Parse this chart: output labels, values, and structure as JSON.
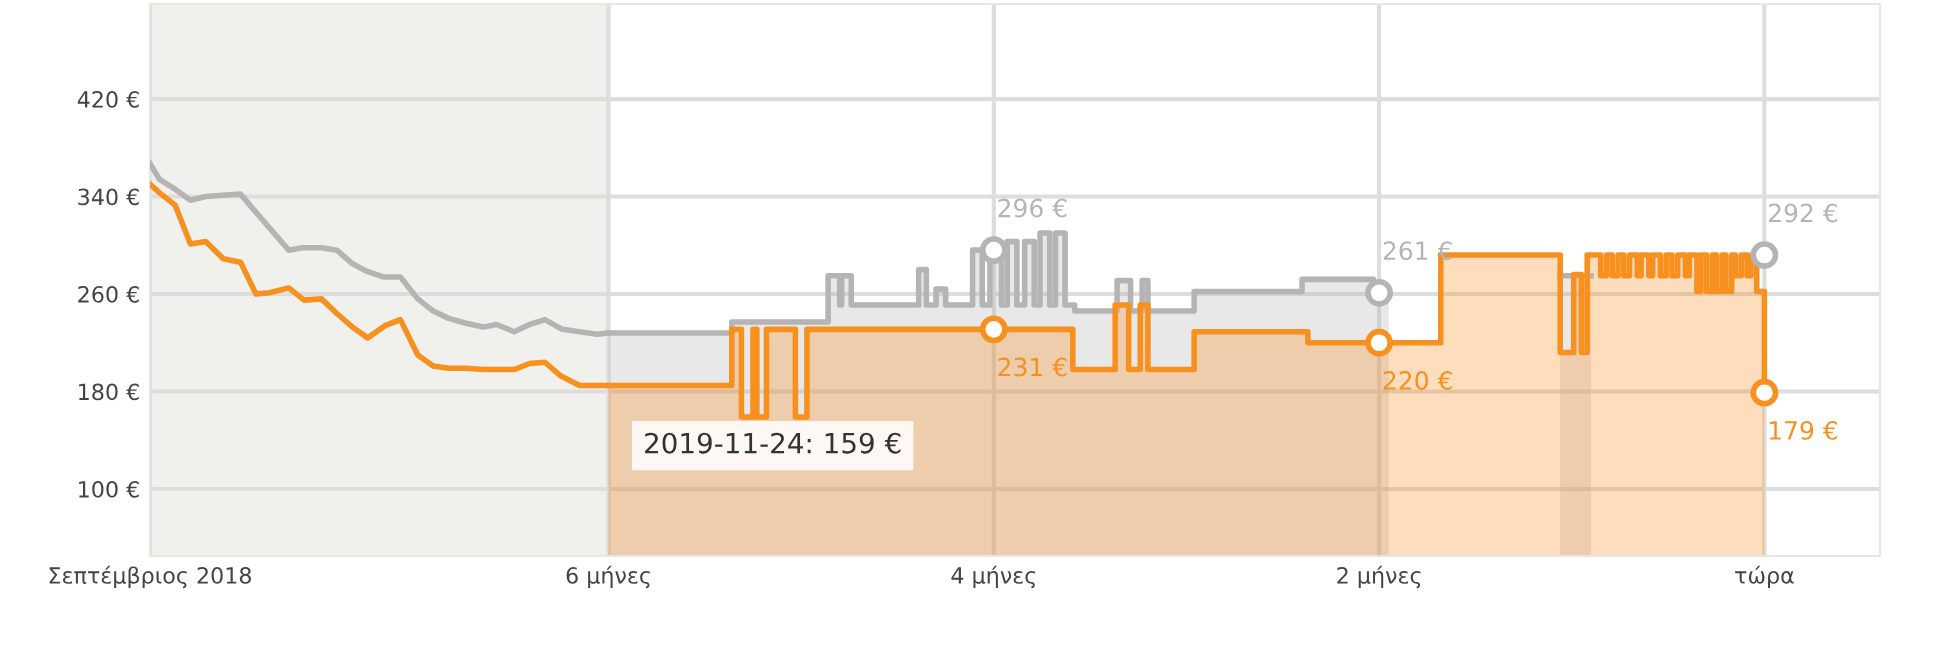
{
  "chart_data": {
    "type": "line",
    "xlim": [
      -8.38,
      0.6
    ],
    "ylim": [
      45,
      498
    ],
    "xticks": [
      {
        "value": -8.38,
        "label": "Σεπτέμβριος 2018"
      },
      {
        "value": -6,
        "label": "6 μήνες"
      },
      {
        "value": -4,
        "label": "4 μήνες"
      },
      {
        "value": -2,
        "label": "2 μήνες"
      },
      {
        "value": 0,
        "label": "τώρα"
      }
    ],
    "yticks": [
      {
        "value": 100,
        "label": "100 €"
      },
      {
        "value": 180,
        "label": "180 €"
      },
      {
        "value": 260,
        "label": "260 €"
      },
      {
        "value": 340,
        "label": "340 €"
      },
      {
        "value": 420,
        "label": "420 €"
      }
    ],
    "grid": true,
    "bands": [
      {
        "axis": "x",
        "from": -8.38,
        "to": -6,
        "color": "#f0f0ec"
      }
    ],
    "series": [
      {
        "color": "#b4b4b4",
        "x": [
          -8.38,
          -8.33,
          -8.25,
          -8.17,
          -8.09,
          -8.0,
          -7.91,
          -7.83,
          -7.66,
          -7.59,
          -7.49,
          -7.41,
          -7.33,
          -7.26,
          -7.17,
          -7.08,
          -6.99,
          -6.91,
          -6.83,
          -6.74,
          -6.65,
          -6.58,
          -6.49,
          -6.41,
          -6.33,
          -6.24,
          -6.15,
          -6.06,
          -6.0
        ],
        "values": [
          367,
          354,
          346,
          337,
          340,
          341,
          342,
          327,
          296,
          298,
          298,
          296,
          285,
          279,
          274,
          274,
          256,
          246,
          240,
          236,
          233,
          235,
          229,
          235,
          239,
          231,
          229,
          227,
          228
        ]
      },
      {
        "color": "#f7901e",
        "x": [
          -8.38,
          -8.33,
          -8.25,
          -8.17,
          -8.09,
          -8.0,
          -7.91,
          -7.83,
          -7.76,
          -7.66,
          -7.58,
          -7.49,
          -7.41,
          -7.33,
          -7.25,
          -7.16,
          -7.08,
          -6.99,
          -6.91,
          -6.83,
          -6.74,
          -6.65,
          -6.58,
          -6.49,
          -6.41,
          -6.33,
          -6.25,
          -6.15,
          -6.06,
          -6.0
        ],
        "values": [
          350,
          343,
          333,
          301,
          303,
          289,
          286,
          260,
          261,
          265,
          255,
          256,
          244,
          233,
          224,
          234,
          239,
          210,
          201,
          199,
          199,
          198,
          198,
          198,
          203,
          204,
          193,
          185,
          185,
          185
        ]
      },
      {
        "type": "area",
        "color": "#b4b4b4",
        "x": [
          -6.0,
          -5.36,
          -5.36,
          -4.86,
          -4.86,
          -4.8,
          -4.8,
          -4.79,
          -4.79,
          -4.74,
          -4.74,
          -4.39,
          -4.39,
          -4.35,
          -4.35,
          -4.3,
          -4.3,
          -4.25,
          -4.25,
          -4.11,
          -4.11,
          -4.06,
          -4.06,
          -4.02,
          -4.02,
          -3.96,
          -3.96,
          -3.93,
          -3.93,
          -3.88,
          -3.88,
          -3.84,
          -3.84,
          -3.79,
          -3.79,
          -3.76,
          -3.76,
          -3.71,
          -3.71,
          -3.68,
          -3.68,
          -3.63,
          -3.63,
          -3.58,
          -3.58,
          -3.36,
          -3.36,
          -3.29,
          -3.29,
          -3.23,
          -3.23,
          -3.2,
          -3.2,
          -2.96,
          -2.96,
          -2.4,
          -2.4,
          -2.03,
          -2.03,
          -1.95,
          -1.5,
          -1.06,
          -0.9
        ],
        "values": [
          228,
          228,
          237,
          237,
          275,
          275,
          251,
          251,
          275,
          275,
          251,
          251,
          280,
          280,
          251,
          251,
          264,
          264,
          251,
          251,
          296,
          296,
          251,
          251,
          296,
          296,
          251,
          251,
          303,
          303,
          251,
          251,
          303,
          303,
          251,
          251,
          310,
          310,
          251,
          251,
          310,
          310,
          251,
          251,
          246,
          246,
          271,
          271,
          246,
          246,
          271,
          271,
          246,
          246,
          262,
          262,
          272,
          272,
          261,
          261,
          null,
          275,
          275
        ]
      },
      {
        "type": "area",
        "color": "#f7901e",
        "x": [
          -6.0,
          -5.36,
          -5.36,
          -5.31,
          -5.31,
          -5.25,
          -5.25,
          -5.23,
          -5.23,
          -5.18,
          -5.18,
          -5.03,
          -5.03,
          -4.97,
          -4.97,
          -3.59,
          -3.59,
          -3.37,
          -3.37,
          -3.3,
          -3.3,
          -3.24,
          -3.24,
          -3.2,
          -3.2,
          -2.96,
          -2.96,
          -2.37,
          -2.37,
          -1.68,
          -1.68,
          -1.06,
          -1.06,
          -0.99,
          -0.99,
          -0.95,
          -0.95,
          -0.92,
          -0.92,
          -0.85,
          -0.85,
          -0.82,
          -0.82,
          -0.79,
          -0.79,
          -0.76,
          -0.76,
          -0.73,
          -0.73,
          -0.7,
          -0.7,
          -0.66,
          -0.66,
          -0.64,
          -0.64,
          -0.6,
          -0.6,
          -0.58,
          -0.58,
          -0.54,
          -0.54,
          -0.51,
          -0.51,
          -0.48,
          -0.48,
          -0.45,
          -0.45,
          -0.41,
          -0.41,
          -0.39,
          -0.39,
          -0.35,
          -0.35,
          -0.33,
          -0.33,
          -0.3,
          -0.3,
          -0.27,
          -0.27,
          -0.25,
          -0.25,
          -0.22,
          -0.22,
          -0.2,
          -0.2,
          -0.17,
          -0.17,
          -0.15,
          -0.15,
          -0.12,
          -0.12,
          -0.09,
          -0.09,
          -0.07,
          -0.07,
          -0.04,
          -0.04,
          0.0,
          0.0
        ],
        "values": [
          185,
          185,
          231,
          231,
          159,
          159,
          231,
          231,
          159,
          159,
          231,
          231,
          159,
          159,
          231,
          231,
          198,
          198,
          251,
          251,
          198,
          198,
          251,
          251,
          198,
          198,
          229,
          229,
          220,
          220,
          292,
          292,
          212,
          212,
          276,
          276,
          212,
          212,
          292,
          292,
          275,
          275,
          292,
          292,
          275,
          275,
          292,
          292,
          275,
          275,
          292,
          292,
          275,
          275,
          292,
          292,
          275,
          275,
          292,
          292,
          275,
          275,
          292,
          292,
          275,
          275,
          292,
          292,
          275,
          275,
          292,
          292,
          262,
          262,
          292,
          292,
          262,
          262,
          292,
          292,
          262,
          262,
          292,
          292,
          262,
          262,
          292,
          292,
          275,
          275,
          292,
          292,
          275,
          275,
          292,
          292,
          262,
          262,
          179
        ]
      }
    ],
    "annotations": [
      {
        "text": "296 €",
        "x": -4,
        "y": 296
      },
      {
        "text": "231 €",
        "x": -4,
        "y": 231
      },
      {
        "text": "261 €",
        "x": -2,
        "y": 261
      },
      {
        "text": "220 €",
        "x": -2,
        "y": 220
      },
      {
        "text": "292 €",
        "x": 0,
        "y": 292
      },
      {
        "text": "179 €",
        "x": 0,
        "y": 179
      },
      "2019-11-24: 159 €"
    ]
  }
}
